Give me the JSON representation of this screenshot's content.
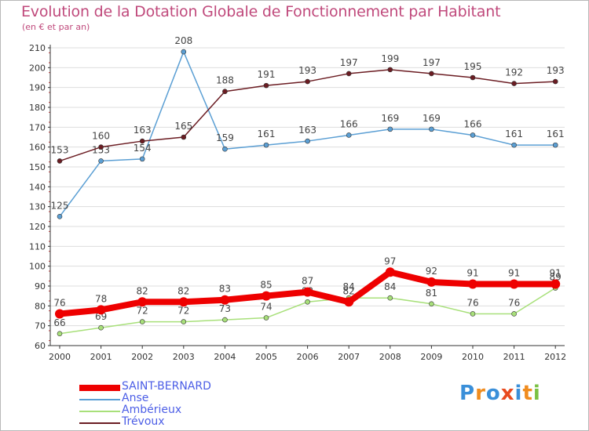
{
  "chart_data": {
    "type": "line",
    "title": "Evolution de la Dotation Globale de Fonctionnement par Habitant",
    "subtitle": "(en € et par an)",
    "xlabel": "",
    "ylabel": "",
    "categories": [
      "2000",
      "2001",
      "2002",
      "2003",
      "2004",
      "2005",
      "2006",
      "2007",
      "2008",
      "2009",
      "2010",
      "2011",
      "2012"
    ],
    "ylim": [
      60,
      210
    ],
    "yticks": [
      60,
      70,
      80,
      90,
      100,
      110,
      120,
      130,
      140,
      150,
      160,
      170,
      180,
      190,
      200,
      210
    ],
    "series": [
      {
        "name": "SAINT-BERNARD",
        "color": "#ee0000",
        "values": [
          76,
          78,
          82,
          82,
          83,
          85,
          87,
          82,
          97,
          92,
          91,
          91,
          91
        ]
      },
      {
        "name": "Anse",
        "color": "#5b9fd4",
        "values": [
          125,
          153,
          154,
          208,
          159,
          161,
          163,
          166,
          169,
          169,
          166,
          161,
          161
        ]
      },
      {
        "name": "Ambérieux",
        "color": "#a8e07a",
        "values": [
          66,
          69,
          72,
          72,
          73,
          74,
          82,
          84,
          84,
          81,
          76,
          76,
          89
        ]
      },
      {
        "name": "Trévoux",
        "color": "#6b1c22",
        "values": [
          153,
          160,
          163,
          165,
          188,
          191,
          193,
          197,
          199,
          197,
          195,
          192,
          193
        ]
      }
    ]
  },
  "logo": {
    "letters": [
      "P",
      "r",
      "o",
      "x",
      "i",
      "t",
      "i"
    ],
    "colors": [
      "#3a8fd9",
      "#f08c1e",
      "#3a8fd9",
      "#e84a1e",
      "#3a8fd9",
      "#f08c1e",
      "#7ac143"
    ]
  }
}
